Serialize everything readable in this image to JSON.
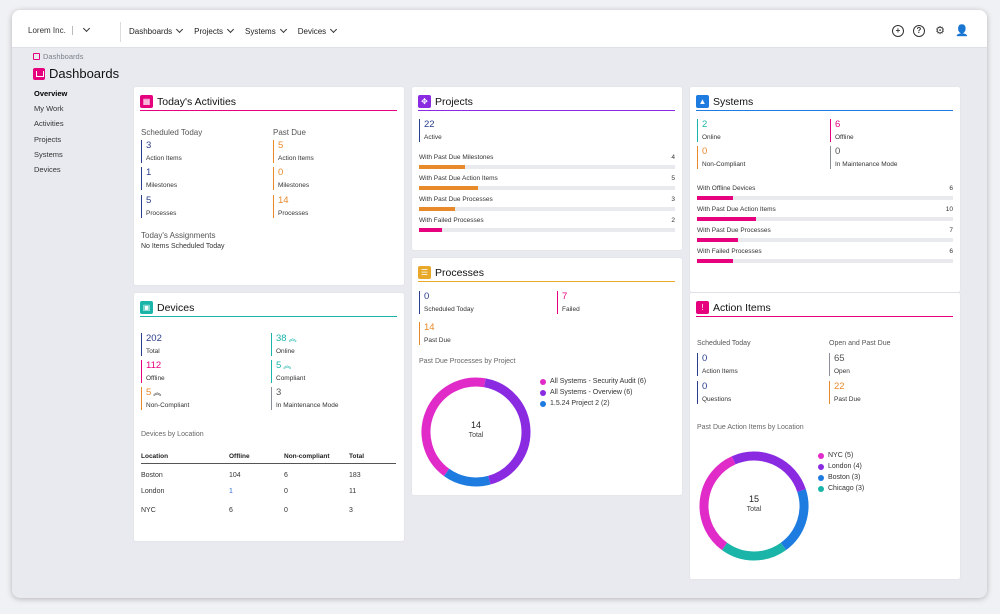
{
  "header": {
    "company": "Lorem Inc.",
    "nav": [
      "Dashboards",
      "Projects",
      "Systems",
      "Devices"
    ],
    "icons": [
      "plus-circle-icon",
      "help-circle-icon",
      "gear-icon",
      "user-icon"
    ]
  },
  "breadcrumb": "Dashboards",
  "page_title": "Dashboards",
  "sidebar": [
    "Overview",
    "My Work",
    "Activities",
    "Projects",
    "Systems",
    "Devices"
  ],
  "colors": {
    "pink": "#e6007e",
    "purple": "#8a2be2",
    "blue": "#1e7be0",
    "teal": "#1ab5a8",
    "orange": "#e8892a",
    "gray": "#8a8f99",
    "navy": "#2b3e8c"
  },
  "activities": {
    "title": "Today's Activities",
    "scheduled_label": "Scheduled Today",
    "pastdue_label": "Past Due",
    "scheduled": [
      {
        "v": "3",
        "l": "Action Items"
      },
      {
        "v": "1",
        "l": "Milestones"
      },
      {
        "v": "5",
        "l": "Processes"
      }
    ],
    "pastdue": [
      {
        "v": "5",
        "l": "Action Items"
      },
      {
        "v": "0",
        "l": "Milestones"
      },
      {
        "v": "14",
        "l": "Processes"
      }
    ],
    "assign_label": "Today's Assignments",
    "assign_text": "No Items Scheduled Today"
  },
  "projects": {
    "title": "Projects",
    "active_v": "22",
    "active_l": "Active",
    "bars": [
      {
        "l": "With Past Due Milestones",
        "n": "4",
        "f": 0.18
      },
      {
        "l": "With Past Due Action Items",
        "n": "5",
        "f": 0.23
      },
      {
        "l": "With Past Due Processes",
        "n": "3",
        "f": 0.14
      },
      {
        "l": "With Failed Processes",
        "n": "2",
        "f": 0.09
      }
    ]
  },
  "systems": {
    "title": "Systems",
    "stats": [
      {
        "v": "2",
        "l": "Online"
      },
      {
        "v": "6",
        "l": "Offline"
      },
      {
        "v": "0",
        "l": "Non-Compliant"
      },
      {
        "v": "0",
        "l": "In Maintenance Mode"
      }
    ],
    "bars": [
      {
        "l": "With Offline Devices",
        "n": "6",
        "f": 0.14
      },
      {
        "l": "With Past Due Action Items",
        "n": "10",
        "f": 0.23
      },
      {
        "l": "With Past Due Processes",
        "n": "7",
        "f": 0.16
      },
      {
        "l": "With Failed Processes",
        "n": "6",
        "f": 0.14
      }
    ]
  },
  "devices": {
    "title": "Devices",
    "stats": [
      {
        "v": "202",
        "l": "Total"
      },
      {
        "v": "38",
        "l": "Online"
      },
      {
        "v": "112",
        "l": "Offline"
      },
      {
        "v": "5",
        "l": "Compliant"
      },
      {
        "v": "5",
        "l": "Non-Compliant"
      },
      {
        "v": "3",
        "l": "In Maintenance Mode"
      }
    ],
    "loc_label": "Devices by Location",
    "cols": [
      "Location",
      "Offline",
      "Non-compliant",
      "Total"
    ],
    "rows": [
      [
        "Boston",
        "104",
        "6",
        "183"
      ],
      [
        "London",
        "1",
        "0",
        "11"
      ],
      [
        "NYC",
        "6",
        "0",
        "3"
      ]
    ]
  },
  "processes": {
    "title": "Processes",
    "stats": [
      {
        "v": "0",
        "l": "Scheduled Today"
      },
      {
        "v": "7",
        "l": "Failed"
      },
      {
        "v": "14",
        "l": "Past Due"
      }
    ],
    "chart_label": "Past Due Processes by Project",
    "total_v": "14",
    "total_l": "Total",
    "legend": [
      "All Systems - Security Audit (6)",
      "All Systems - Overview (6)",
      "1.5.24 Project 2 (2)"
    ],
    "slices": [
      6,
      6,
      2
    ]
  },
  "actions": {
    "title": "Action Items",
    "sched_label": "Scheduled Today",
    "open_label": "Open and Past Due",
    "stats": [
      {
        "v": "0",
        "l": "Action Items"
      },
      {
        "v": "65",
        "l": "Open"
      },
      {
        "v": "0",
        "l": "Questions"
      },
      {
        "v": "22",
        "l": "Past Due"
      }
    ],
    "chart_label": "Past Due Action Items by Location",
    "total_v": "15",
    "total_l": "Total",
    "legend": [
      "NYC (5)",
      "London (4)",
      "Boston (3)",
      "Chicago (3)"
    ],
    "slices": [
      5,
      4,
      3,
      3
    ]
  }
}
